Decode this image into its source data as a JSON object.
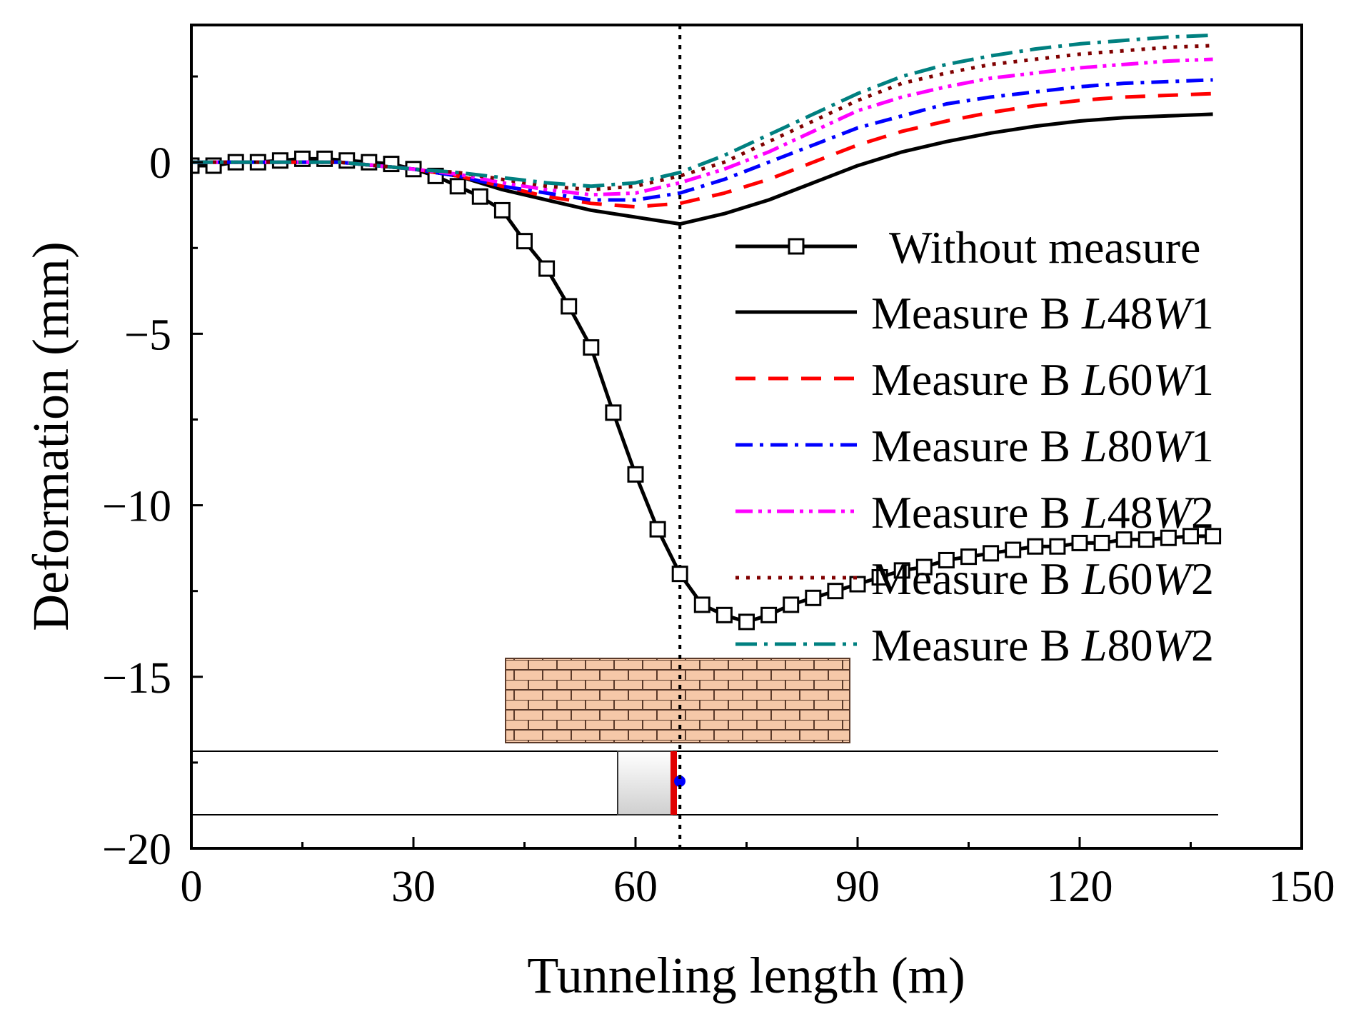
{
  "chart_data": {
    "type": "line",
    "title": "",
    "xlabel": "Tunneling length (m)",
    "ylabel": "Deformation (mm)",
    "xlim": [
      0,
      150
    ],
    "ylim": [
      -20,
      4
    ],
    "grid": false,
    "legend_position": "right",
    "x_ticks": [
      0,
      30,
      60,
      90,
      120,
      150
    ],
    "x_tick_labels": [
      "0",
      "30",
      "60",
      "90",
      "120",
      "150"
    ],
    "y_ticks": [
      0,
      -5,
      -10,
      -15,
      -20
    ],
    "y_tick_labels": [
      "0",
      "−5",
      "−10",
      "−15",
      "−20"
    ],
    "face_position_m": 66,
    "colors": {
      "without": "#000000",
      "L48W1": "#000000",
      "L60W1": "#ff0000",
      "L80W1": "#0000ff",
      "L48W2": "#ff00ff",
      "L60W2": "#800000",
      "L80W2": "#008080",
      "face_line": "#000000",
      "brick_fill": "#f5c8a8",
      "brick_line": "#5a3a2a",
      "tbm_face": "#e00000",
      "monitor_point": "#0000ff"
    },
    "series": [
      {
        "key": "without",
        "name": "Without measure",
        "marker": "square",
        "x": [
          0,
          3,
          6,
          9,
          12,
          15,
          18,
          21,
          24,
          27,
          30,
          33,
          36,
          39,
          42,
          45,
          48,
          51,
          54,
          57,
          60,
          63,
          66,
          69,
          72,
          75,
          78,
          81,
          84,
          87,
          90,
          93,
          96,
          99,
          102,
          105,
          108,
          111,
          114,
          117,
          120,
          123,
          126,
          129,
          132,
          135,
          138
        ],
        "y": [
          -0.1,
          -0.1,
          0,
          0,
          0.05,
          0.1,
          0.1,
          0.05,
          0,
          -0.05,
          -0.2,
          -0.4,
          -0.7,
          -1.0,
          -1.4,
          -2.3,
          -3.1,
          -4.2,
          -5.4,
          -7.3,
          -9.1,
          -10.7,
          -12.0,
          -12.9,
          -13.2,
          -13.4,
          -13.2,
          -12.9,
          -12.7,
          -12.5,
          -12.3,
          -12.1,
          -11.9,
          -11.8,
          -11.6,
          -11.5,
          -11.4,
          -11.3,
          -11.2,
          -11.2,
          -11.1,
          -11.1,
          -11.0,
          -11.0,
          -10.95,
          -10.9,
          -10.9
        ]
      },
      {
        "key": "L48W1",
        "name": "Measure B L48W1",
        "name_parts": [
          "Measure B ",
          "L",
          "48",
          "W",
          "1"
        ],
        "dash": "solid",
        "x": [
          0,
          10,
          20,
          30,
          36,
          42,
          48,
          54,
          60,
          66,
          72,
          78,
          84,
          90,
          96,
          102,
          108,
          114,
          120,
          126,
          132,
          138
        ],
        "y": [
          0,
          0,
          0,
          -0.2,
          -0.4,
          -0.8,
          -1.1,
          -1.4,
          -1.6,
          -1.8,
          -1.5,
          -1.1,
          -0.6,
          -0.1,
          0.3,
          0.6,
          0.85,
          1.05,
          1.2,
          1.3,
          1.35,
          1.4
        ]
      },
      {
        "key": "L60W1",
        "name": "Measure B L60W1",
        "name_parts": [
          "Measure B ",
          "L",
          "60",
          "W",
          "1"
        ],
        "dash": "dash",
        "x": [
          0,
          10,
          20,
          30,
          36,
          42,
          48,
          54,
          60,
          66,
          72,
          78,
          84,
          90,
          96,
          102,
          108,
          114,
          120,
          126,
          132,
          138
        ],
        "y": [
          0,
          0,
          0,
          -0.2,
          -0.4,
          -0.7,
          -1.0,
          -1.2,
          -1.3,
          -1.2,
          -0.9,
          -0.5,
          0,
          0.5,
          0.9,
          1.2,
          1.45,
          1.65,
          1.8,
          1.9,
          1.95,
          2.0
        ]
      },
      {
        "key": "L80W1",
        "name": "Measure B L80W1",
        "name_parts": [
          "Measure B ",
          "L",
          "80",
          "W",
          "1"
        ],
        "dash": "dashdot",
        "x": [
          0,
          10,
          20,
          30,
          36,
          42,
          48,
          54,
          60,
          66,
          72,
          78,
          84,
          90,
          96,
          102,
          108,
          114,
          120,
          126,
          132,
          138
        ],
        "y": [
          0,
          0,
          0,
          -0.2,
          -0.4,
          -0.7,
          -0.9,
          -1.1,
          -1.1,
          -0.9,
          -0.5,
          0,
          0.5,
          1.0,
          1.35,
          1.7,
          1.9,
          2.05,
          2.2,
          2.3,
          2.35,
          2.4
        ]
      },
      {
        "key": "L48W2",
        "name": "Measure B L48W2",
        "name_parts": [
          "Measure B ",
          "L",
          "48",
          "W",
          "2"
        ],
        "dash": "dashdotdot",
        "x": [
          0,
          10,
          20,
          30,
          36,
          42,
          48,
          54,
          60,
          66,
          72,
          78,
          84,
          90,
          96,
          102,
          108,
          114,
          120,
          126,
          132,
          138
        ],
        "y": [
          0,
          0,
          0,
          -0.2,
          -0.35,
          -0.6,
          -0.8,
          -0.95,
          -0.9,
          -0.6,
          -0.2,
          0.3,
          0.9,
          1.5,
          1.9,
          2.2,
          2.45,
          2.6,
          2.75,
          2.85,
          2.95,
          3.0
        ]
      },
      {
        "key": "L60W2",
        "name": "Measure B L60W2",
        "name_parts": [
          "Measure B ",
          "L",
          "60",
          "W",
          "2"
        ],
        "dash": "dot",
        "x": [
          0,
          10,
          20,
          30,
          36,
          42,
          48,
          54,
          60,
          66,
          72,
          78,
          84,
          90,
          96,
          102,
          108,
          114,
          120,
          126,
          132,
          138
        ],
        "y": [
          0,
          0,
          0,
          -0.2,
          -0.3,
          -0.5,
          -0.7,
          -0.8,
          -0.7,
          -0.4,
          0,
          0.6,
          1.2,
          1.8,
          2.3,
          2.6,
          2.85,
          3.0,
          3.15,
          3.25,
          3.35,
          3.4
        ]
      },
      {
        "key": "L80W2",
        "name": "Measure B L80W2",
        "name_parts": [
          "Measure B ",
          "L",
          "80",
          "W",
          "2"
        ],
        "dash": "dashdotlong",
        "x": [
          0,
          10,
          20,
          30,
          36,
          42,
          48,
          54,
          60,
          66,
          72,
          78,
          84,
          90,
          96,
          102,
          108,
          114,
          120,
          126,
          132,
          138
        ],
        "y": [
          0,
          0,
          0,
          -0.2,
          -0.3,
          -0.45,
          -0.6,
          -0.7,
          -0.6,
          -0.3,
          0.2,
          0.8,
          1.4,
          2.0,
          2.5,
          2.85,
          3.1,
          3.3,
          3.45,
          3.55,
          3.65,
          3.7
        ]
      }
    ]
  }
}
